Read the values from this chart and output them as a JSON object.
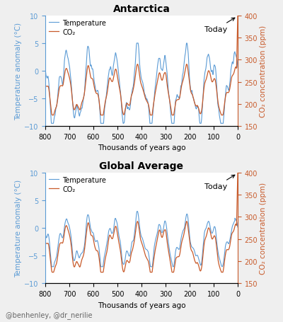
{
  "title1": "Antarctica",
  "title2": "Global Average",
  "xlabel": "Thousands of years ago",
  "ylabel_left": "Temperature anomaly (°C)",
  "ylabel_right": "CO₂ concentration (ppm)",
  "legend_temp": "Temperature",
  "legend_co2": "CO₂",
  "annotation": "Today",
  "xlim": [
    800,
    0
  ],
  "xticks": [
    800,
    700,
    600,
    500,
    400,
    300,
    200,
    100,
    0
  ],
  "ylim_temp": [
    -10,
    10
  ],
  "yticks_temp": [
    -10,
    -5,
    0,
    5,
    10
  ],
  "ylim_co2": [
    150,
    400
  ],
  "yticks_co2": [
    150,
    200,
    250,
    300,
    350,
    400
  ],
  "temp_color": "#5B9BD5",
  "co2_color": "#C85A2A",
  "bg_color": "#EFEFEF",
  "plot_bg": "#FFFFFF",
  "credit": "@benhenley, @dr_nerilie",
  "title_fontsize": 10,
  "label_fontsize": 7.5,
  "tick_fontsize": 7,
  "credit_fontsize": 7,
  "linewidth_temp": 0.8,
  "linewidth_co2": 0.9
}
